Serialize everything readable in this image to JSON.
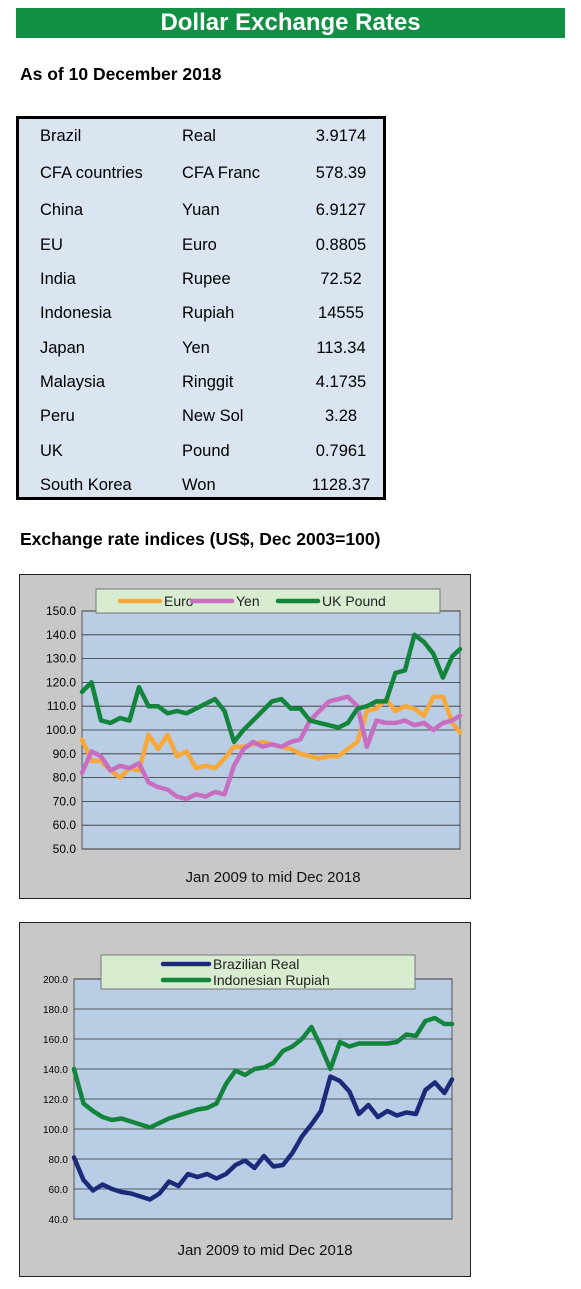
{
  "header": {
    "title": "Dollar Exchange Rates",
    "date_line": "As of 10 December 2018"
  },
  "rates": [
    {
      "country": "Brazil",
      "currency": "Real",
      "rate": "3.9174"
    },
    {
      "country": "CFA countries",
      "currency": "CFA Franc",
      "rate": "578.39"
    },
    {
      "country": "China",
      "currency": "Yuan",
      "rate": "6.9127"
    },
    {
      "country": "EU",
      "currency": "Euro",
      "rate": "0.8805"
    },
    {
      "country": "India",
      "currency": "Rupee",
      "rate": "72.52"
    },
    {
      "country": "Indonesia",
      "currency": "Rupiah",
      "rate": "14555"
    },
    {
      "country": "Japan",
      "currency": "Yen",
      "rate": "113.34"
    },
    {
      "country": "Malaysia",
      "currency": "Ringgit",
      "rate": "4.1735"
    },
    {
      "country": "Peru",
      "currency": "New Sol",
      "rate": "3.28"
    },
    {
      "country": "UK",
      "currency": "Pound",
      "rate": "0.7961"
    },
    {
      "country": "South Korea",
      "currency": "Won",
      "rate": "1128.37"
    }
  ],
  "indices_heading": "Exchange rate indices (US$, Dec 2003=100)",
  "colors": {
    "banner": "#119044",
    "euro": "#f7a83a",
    "yen": "#c86ec0",
    "uk_pound": "#12843c",
    "brazilian_real": "#1c2a7a",
    "indonesian_rupiah": "#12843c",
    "plot_bg": "#b9cde5",
    "legend_bg": "#d8ecd0",
    "panel_bg": "#c8c8c8"
  },
  "chart_data": [
    {
      "type": "line",
      "xlabel": "Jan 2009  to mid Dec 2018",
      "ylim": [
        50,
        150
      ],
      "yticks": [
        "150.0",
        "140.0",
        "130.0",
        "120.0",
        "110.0",
        "100.0",
        "90.0",
        "80.0",
        "70.0",
        "60.0",
        "50.0"
      ],
      "legend_position": "top",
      "x_range": [
        2009.0,
        2018.95
      ],
      "series": [
        {
          "name": "Euro",
          "color": "#f7a83a",
          "x": [
            2009.0,
            2009.25,
            2009.5,
            2009.75,
            2010.0,
            2010.25,
            2010.5,
            2010.75,
            2011.0,
            2011.25,
            2011.5,
            2011.75,
            2012.0,
            2012.25,
            2012.5,
            2012.75,
            2013.0,
            2013.25,
            2013.5,
            2013.75,
            2014.0,
            2014.25,
            2014.5,
            2014.75,
            2015.0,
            2015.25,
            2015.5,
            2015.75,
            2016.0,
            2016.25,
            2016.5,
            2016.75,
            2017.0,
            2017.25,
            2017.5,
            2017.75,
            2018.0,
            2018.25,
            2018.5,
            2018.75,
            2018.95
          ],
          "values": [
            96,
            87,
            87,
            83,
            80,
            84,
            83,
            98,
            92,
            98,
            89,
            91,
            84,
            85,
            84,
            88,
            93,
            93,
            94,
            95,
            94,
            93,
            92,
            90,
            89,
            88,
            89,
            89,
            92,
            95,
            108,
            109,
            113,
            108,
            110,
            109,
            106,
            114,
            114,
            103,
            99
          ]
        },
        {
          "name": "Yen",
          "color": "#c86ec0",
          "x": [
            2009.0,
            2009.25,
            2009.5,
            2009.75,
            2010.0,
            2010.25,
            2010.5,
            2010.75,
            2011.0,
            2011.25,
            2011.5,
            2011.75,
            2012.0,
            2012.25,
            2012.5,
            2012.75,
            2013.0,
            2013.25,
            2013.5,
            2013.75,
            2014.0,
            2014.25,
            2014.5,
            2014.75,
            2015.0,
            2015.25,
            2015.5,
            2015.75,
            2016.0,
            2016.25,
            2016.5,
            2016.75,
            2017.0,
            2017.25,
            2017.5,
            2017.75,
            2018.0,
            2018.25,
            2018.5,
            2018.75,
            2018.95
          ],
          "values": [
            82,
            91,
            89,
            83,
            85,
            84,
            86,
            78,
            76,
            75,
            72,
            71,
            73,
            72,
            74,
            73,
            85,
            92,
            95,
            93,
            94,
            93,
            95,
            96,
            104,
            108,
            112,
            113,
            114,
            110,
            93,
            104,
            103,
            103,
            104,
            102,
            103,
            100,
            103,
            104,
            106
          ]
        },
        {
          "name": "UK Pound",
          "color": "#12843c",
          "x": [
            2009.0,
            2009.25,
            2009.5,
            2009.75,
            2010.0,
            2010.25,
            2010.5,
            2010.75,
            2011.0,
            2011.25,
            2011.5,
            2011.75,
            2012.0,
            2012.25,
            2012.5,
            2012.75,
            2013.0,
            2013.25,
            2013.5,
            2013.75,
            2014.0,
            2014.25,
            2014.5,
            2014.75,
            2015.0,
            2015.25,
            2015.5,
            2015.75,
            2016.0,
            2016.25,
            2016.5,
            2016.75,
            2017.0,
            2017.25,
            2017.5,
            2017.75,
            2018.0,
            2018.25,
            2018.5,
            2018.75,
            2018.95
          ],
          "values": [
            116,
            120,
            104,
            103,
            105,
            104,
            118,
            110,
            110,
            107,
            108,
            107,
            109,
            111,
            113,
            108,
            95,
            100,
            104,
            108,
            112,
            113,
            109,
            109,
            104,
            103,
            102,
            101,
            103,
            109,
            110,
            112,
            112,
            124,
            125,
            140,
            137,
            132,
            122,
            131,
            134
          ]
        }
      ]
    },
    {
      "type": "line",
      "xlabel": "Jan 2009  to mid Dec 2018",
      "ylim": [
        40,
        200
      ],
      "yticks": [
        "200.0",
        "180.0",
        "160.0",
        "140.0",
        "120.0",
        "100.0",
        "80.0",
        "60.0",
        "40.0"
      ],
      "legend_position": "top",
      "x_range": [
        2009.0,
        2018.95
      ],
      "series": [
        {
          "name": "Brazilian Real",
          "color": "#1c2a7a",
          "x": [
            2009.0,
            2009.25,
            2009.5,
            2009.75,
            2010.0,
            2010.25,
            2010.5,
            2010.75,
            2011.0,
            2011.25,
            2011.5,
            2011.75,
            2012.0,
            2012.25,
            2012.5,
            2012.75,
            2013.0,
            2013.25,
            2013.5,
            2013.75,
            2014.0,
            2014.25,
            2014.5,
            2014.75,
            2015.0,
            2015.25,
            2015.5,
            2015.75,
            2016.0,
            2016.25,
            2016.5,
            2016.75,
            2017.0,
            2017.25,
            2017.5,
            2017.75,
            2018.0,
            2018.25,
            2018.5,
            2018.75,
            2018.95
          ],
          "values": [
            81,
            66,
            59,
            63,
            60,
            58,
            57,
            55,
            53,
            57,
            65,
            62,
            70,
            68,
            70,
            67,
            70,
            76,
            79,
            74,
            82,
            75,
            76,
            84,
            95,
            103,
            112,
            135,
            132,
            125,
            110,
            116,
            108,
            112,
            109,
            111,
            110,
            126,
            131,
            124,
            133
          ]
        },
        {
          "name": "Indonesian Rupiah",
          "color": "#12843c",
          "x": [
            2009.0,
            2009.25,
            2009.5,
            2009.75,
            2010.0,
            2010.25,
            2010.5,
            2010.75,
            2011.0,
            2011.25,
            2011.5,
            2011.75,
            2012.0,
            2012.25,
            2012.5,
            2012.75,
            2013.0,
            2013.25,
            2013.5,
            2013.75,
            2014.0,
            2014.25,
            2014.5,
            2014.75,
            2015.0,
            2015.25,
            2015.5,
            2015.75,
            2016.0,
            2016.25,
            2016.5,
            2016.75,
            2017.0,
            2017.25,
            2017.5,
            2017.75,
            2018.0,
            2018.25,
            2018.5,
            2018.75,
            2018.95
          ],
          "values": [
            140,
            117,
            112,
            108,
            106,
            107,
            105,
            103,
            101,
            104,
            107,
            109,
            111,
            113,
            114,
            117,
            130,
            139,
            136,
            140,
            141,
            144,
            152,
            155,
            160,
            168,
            155,
            140,
            158,
            155,
            157,
            157,
            157,
            157,
            158,
            163,
            162,
            172,
            174,
            170,
            170
          ]
        }
      ]
    }
  ]
}
